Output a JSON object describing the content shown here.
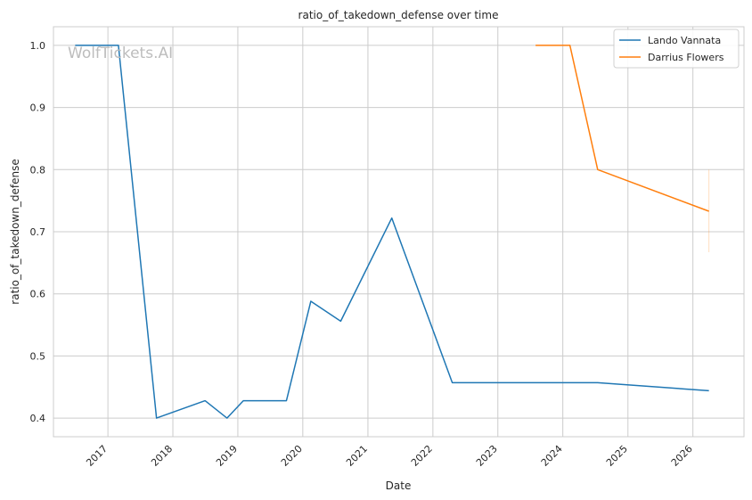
{
  "chart_data": {
    "type": "line",
    "title": "ratio_of_takedown_defense over time",
    "xlabel": "Date",
    "ylabel": "ratio_of_takedown_defense",
    "watermark": "WolfTickets.AI",
    "x_ticks": [
      "2017",
      "2018",
      "2019",
      "2020",
      "2021",
      "2022",
      "2023",
      "2024",
      "2025",
      "2026"
    ],
    "y_ticks": [
      "0.4",
      "0.5",
      "0.6",
      "0.7",
      "0.8",
      "0.9",
      "1.0"
    ],
    "xlim": [
      "2016-03-01",
      "2026-10-15"
    ],
    "ylim": [
      0.37,
      1.03
    ],
    "grid": true,
    "legend_position": "top-right",
    "series": [
      {
        "name": "Lando Vannata",
        "color": "#1f77b4",
        "x": [
          "2016-07-01",
          "2017-03-01",
          "2017-10-01",
          "2018-07-01",
          "2018-11-01",
          "2019-02-01",
          "2019-10-01",
          "2020-02-15",
          "2020-08-01",
          "2021-05-15",
          "2022-04-20",
          "2024-07-15",
          "2026-04-01"
        ],
        "y": [
          1.0,
          1.0,
          0.4,
          0.428,
          0.4,
          0.428,
          0.428,
          0.588,
          0.556,
          0.722,
          0.457,
          0.457,
          0.444
        ]
      },
      {
        "name": "Darrius Flowers",
        "color": "#ff7f0e",
        "x": [
          "2023-08-01",
          "2024-02-10",
          "2024-07-15",
          "2026-04-01"
        ],
        "y": [
          1.0,
          1.0,
          0.8,
          0.733
        ]
      }
    ],
    "error_bar": {
      "x": "2026-04-01",
      "y_low": 0.667,
      "y_high": 0.8,
      "color": "#ff7f0e"
    }
  }
}
